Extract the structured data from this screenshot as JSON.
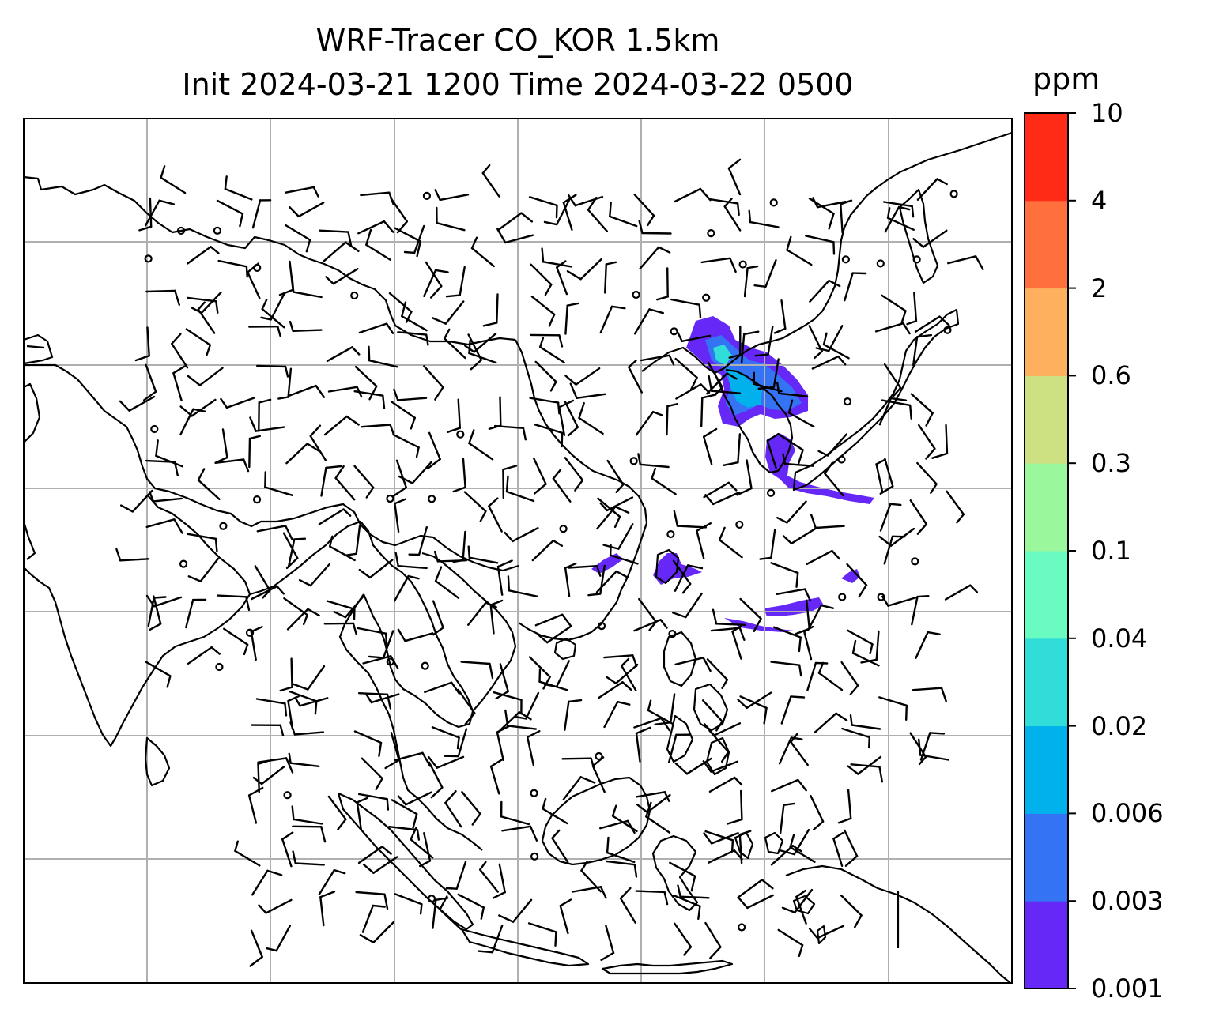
{
  "title": {
    "line1": "WRF-Tracer CO_KOR 1.5km",
    "line2": "Init 2024-03-21 1200 Time 2024-03-22 0500"
  },
  "colorbar": {
    "unit": "ppm",
    "levels": [
      "0.001",
      "0.003",
      "0.006",
      "0.02",
      "0.04",
      "0.1",
      "0.3",
      "0.6",
      "2",
      "4",
      "10"
    ],
    "colors": [
      "#6628f6",
      "#3474f4",
      "#00b1ec",
      "#30ddd8",
      "#6afbc0",
      "#9bf79b",
      "#cde183",
      "#ffb05e",
      "#ff703c",
      "#ff2b16"
    ]
  },
  "map": {
    "coastline_color": "#000000",
    "grid_color": "#b0b0b0",
    "tracer_color": "#6628f6",
    "tracer_color_mid": "#3474f4",
    "tracer_color_high": "#00b1ec",
    "tracer_color_peak": "#30ddd8"
  }
}
